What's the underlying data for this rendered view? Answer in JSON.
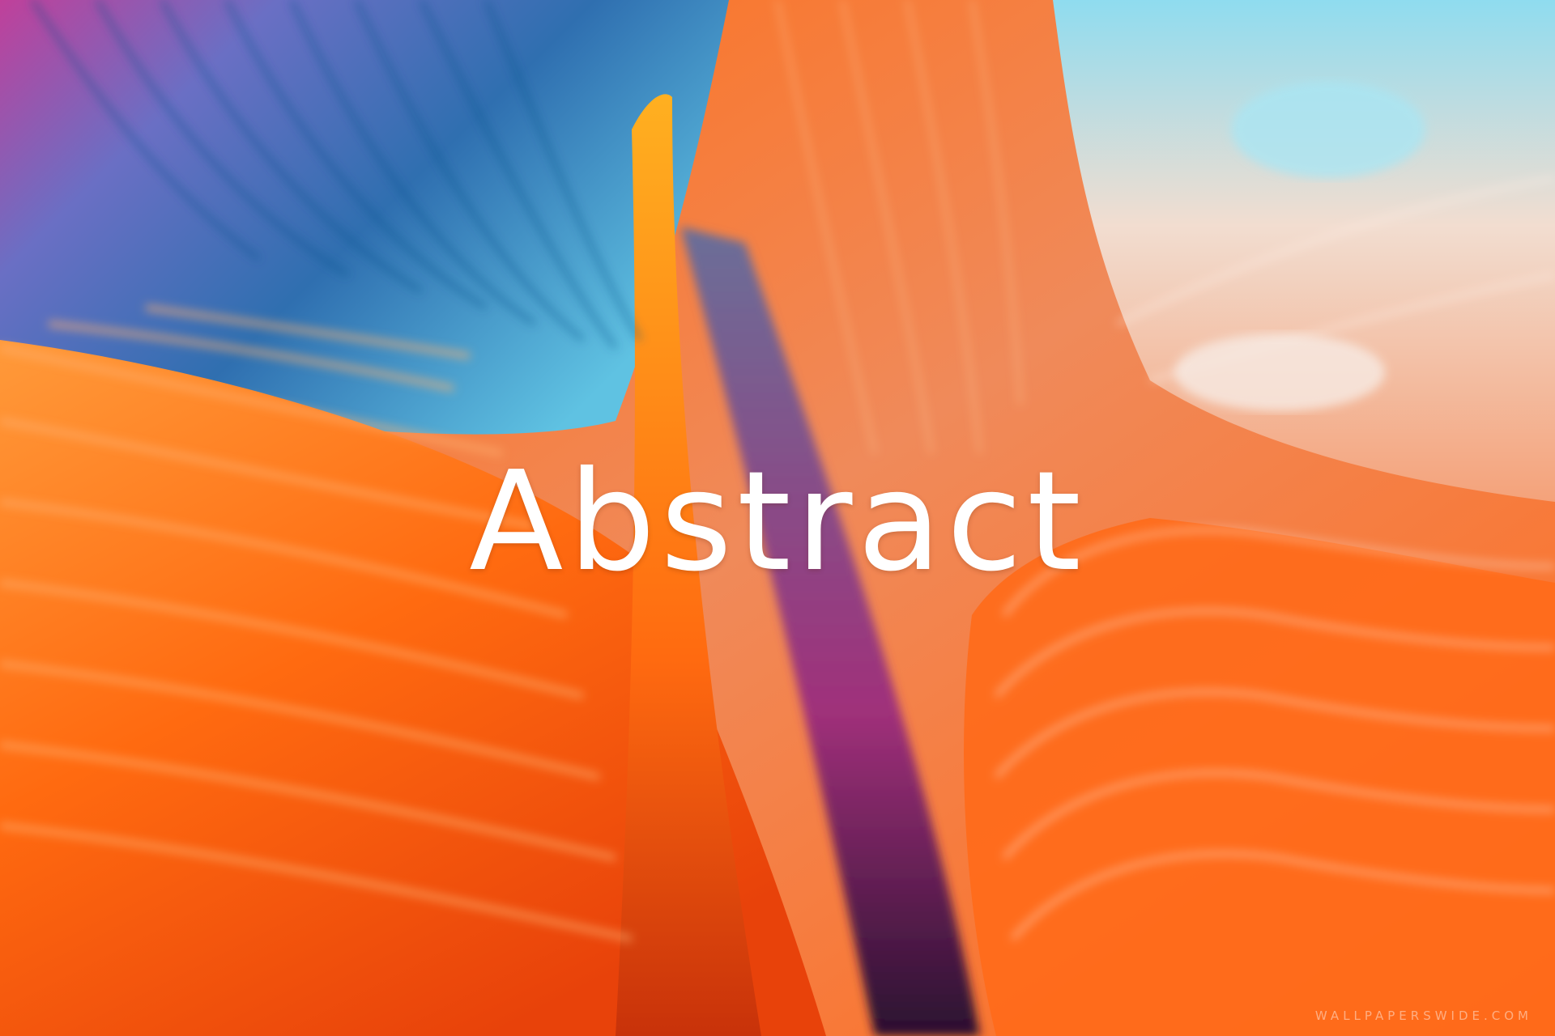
{
  "image": {
    "title": "Abstract",
    "watermark": "WALLPAPERSWIDE.COM",
    "icon_name": "abstract-wave-artwork",
    "colors": {
      "magenta": "#c0409a",
      "blue": "#2f6fb0",
      "cyan": "#7fd3ea",
      "orange": "#ff6a10",
      "red_orange": "#e8420a",
      "peach": "#f4a27a",
      "cream": "#f2ddd0",
      "dark": "#2a1030",
      "text": "#ffffff"
    }
  }
}
